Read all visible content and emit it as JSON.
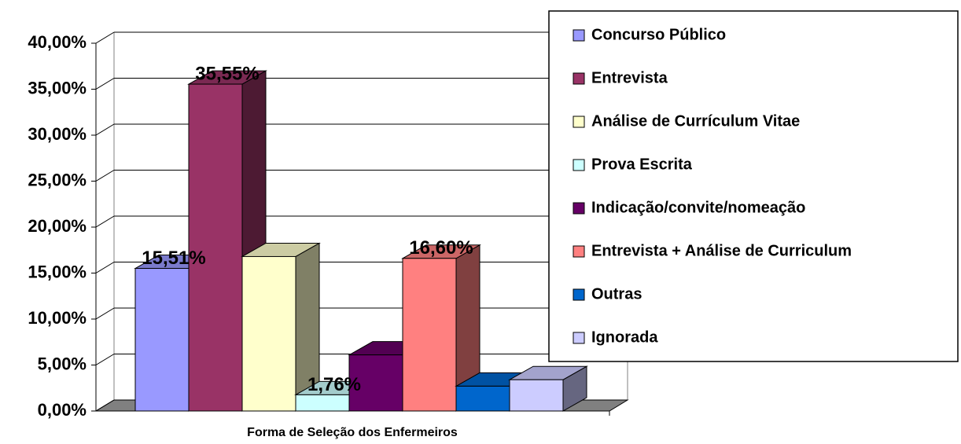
{
  "chart_data": {
    "type": "bar3d",
    "categories": [
      "Forma de Seleção dos Enfermeiros"
    ],
    "series": [
      {
        "name": "Concurso Público",
        "color": "#9999ff",
        "values": [
          15.51
        ],
        "value_labels": [
          "15,51%"
        ]
      },
      {
        "name": "Entrevista",
        "color": "#993366",
        "values": [
          35.55
        ],
        "value_labels": [
          "35,55%"
        ]
      },
      {
        "name": "Análise de Currículum Vitae",
        "color": "#ffffcc",
        "values": [
          16.8
        ]
      },
      {
        "name": "Prova Escrita",
        "color": "#ccffff",
        "values": [
          1.76
        ],
        "value_labels": [
          "1,76%"
        ]
      },
      {
        "name": "Indicação/convite/nomeação",
        "color": "#660066",
        "values": [
          6.1
        ]
      },
      {
        "name": "Entrevista + Análise de Curriculum",
        "color": "#ff8080",
        "values": [
          16.6
        ],
        "value_labels": [
          "16,60%"
        ]
      },
      {
        "name": "Outras",
        "color": "#0066cc",
        "values": [
          2.7
        ]
      },
      {
        "name": "Ignorada",
        "color": "#ccccff",
        "values": [
          3.4
        ]
      }
    ],
    "ylim": [
      0,
      40
    ],
    "yticks": [
      {
        "value": 0,
        "label": "0,00%"
      },
      {
        "value": 5,
        "label": "5,00%"
      },
      {
        "value": 10,
        "label": "10,00%"
      },
      {
        "value": 15,
        "label": "15,00%"
      },
      {
        "value": 20,
        "label": "20,00%"
      },
      {
        "value": 25,
        "label": "25,00%"
      },
      {
        "value": 30,
        "label": "30,00%"
      },
      {
        "value": 35,
        "label": "35,00%"
      },
      {
        "value": 40,
        "label": "40,00%"
      }
    ],
    "grid": true,
    "legend": "right"
  }
}
